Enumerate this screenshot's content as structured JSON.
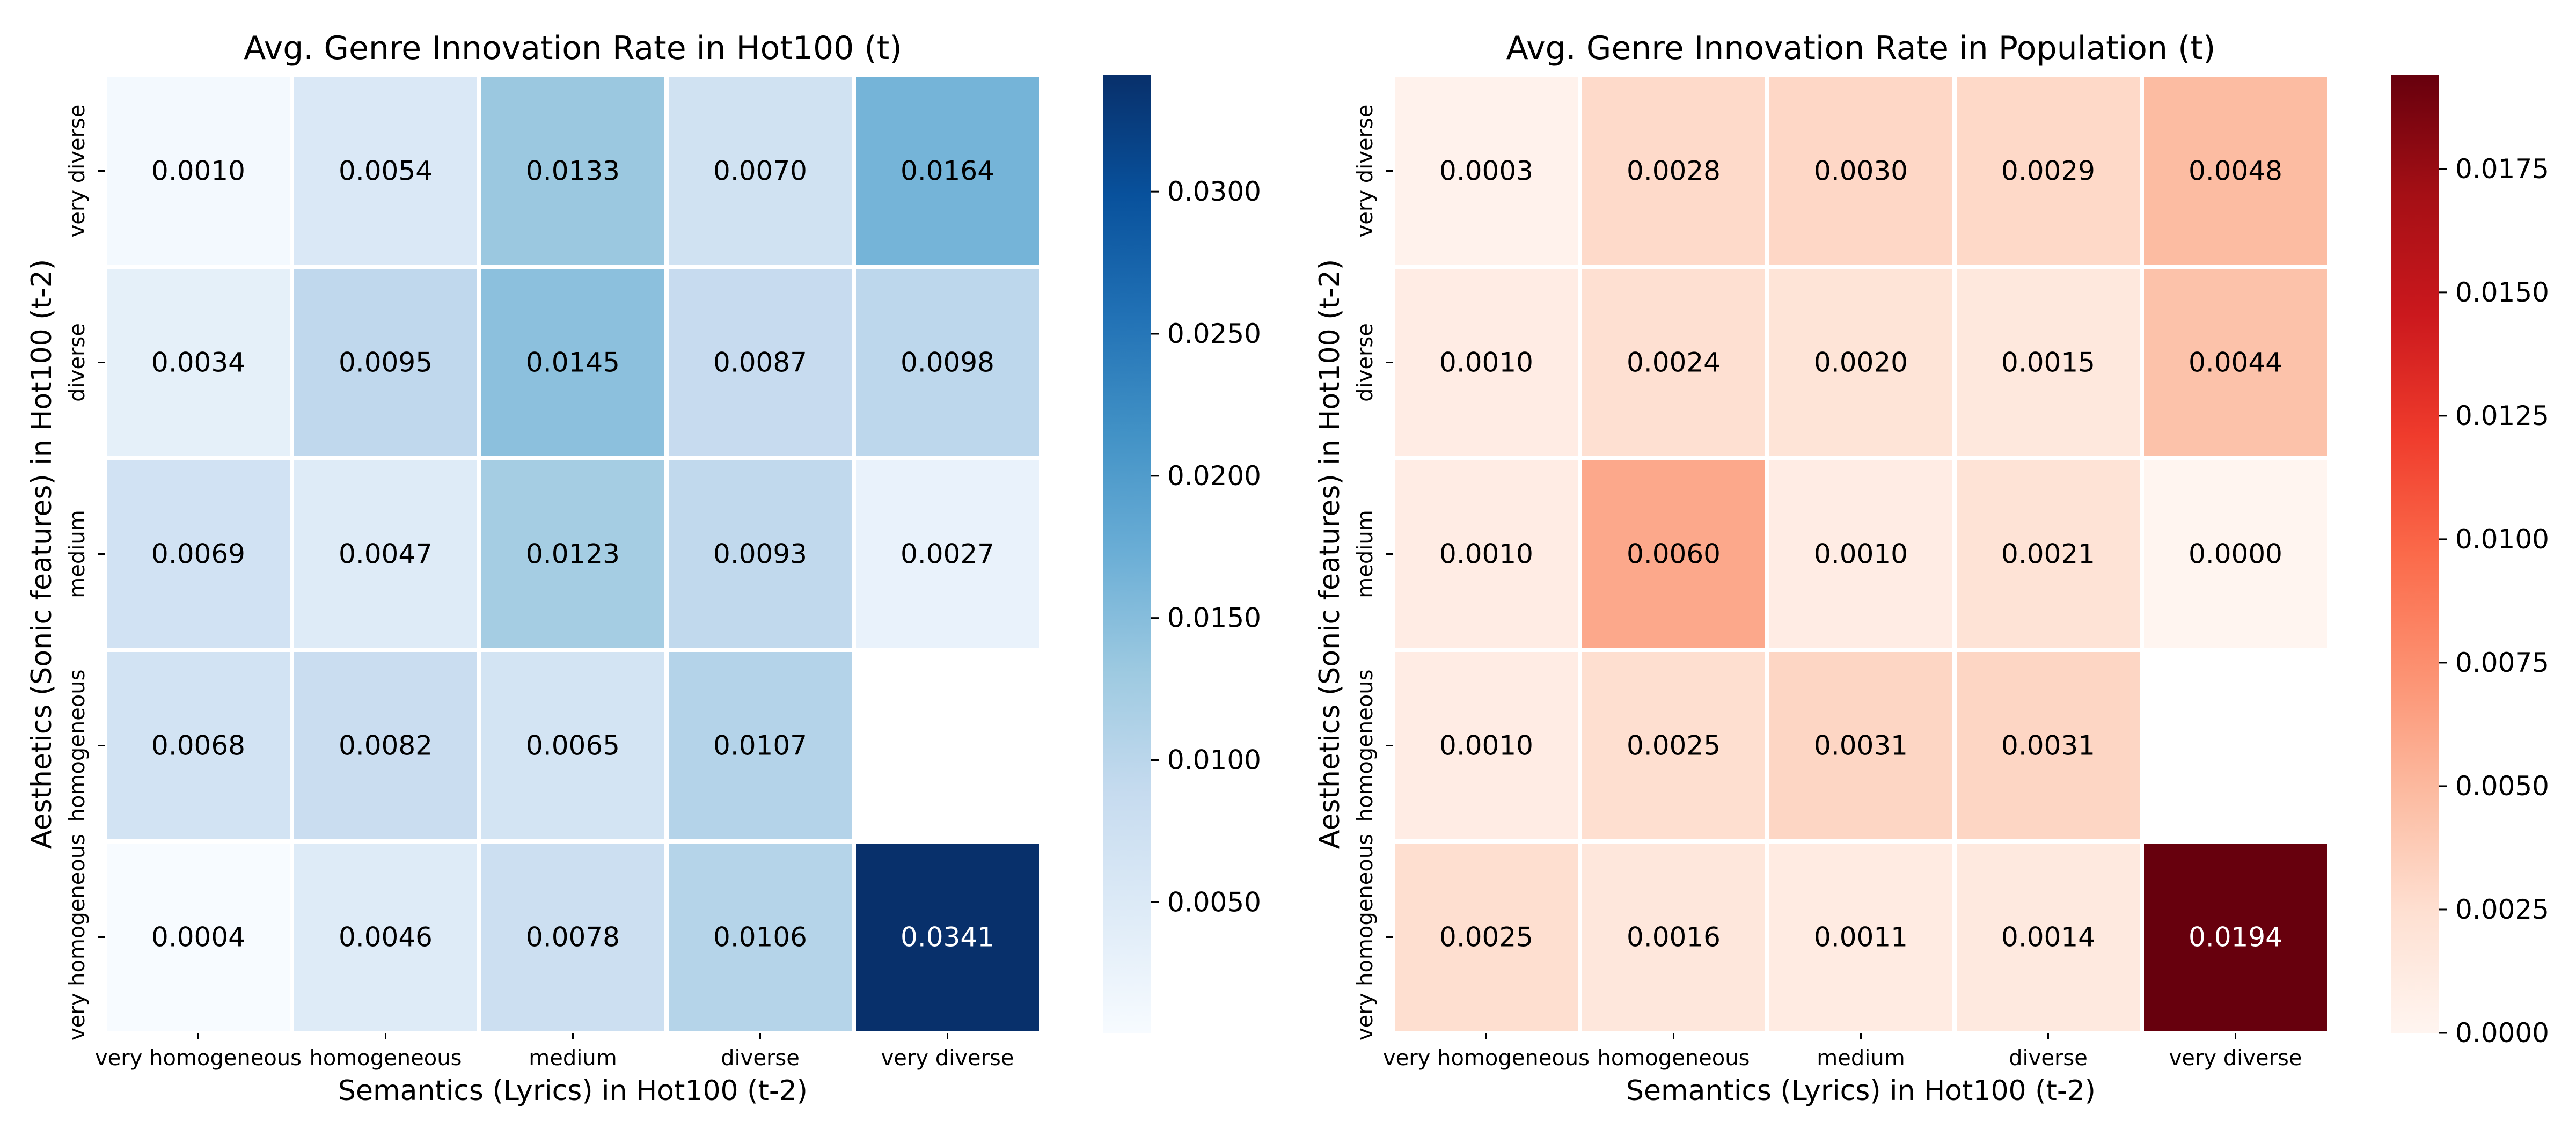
{
  "chart_data": [
    {
      "type": "heatmap",
      "title": "Avg. Genre Innovation Rate in Hot100 (t)",
      "xlabel": "Semantics (Lyrics) in Hot100 (t-2)",
      "ylabel": "Aesthetics (Sonic features) in Hot100 (t-2)",
      "x_categories": [
        "very homogeneous",
        "homogeneous",
        "medium",
        "diverse",
        "very diverse"
      ],
      "y_categories": [
        "very diverse",
        "diverse",
        "medium",
        "homogeneous",
        "very homogeneous"
      ],
      "values": [
        [
          0.001,
          0.0054,
          0.0133,
          0.007,
          0.0164
        ],
        [
          0.0034,
          0.0095,
          0.0145,
          0.0087,
          0.0098
        ],
        [
          0.0069,
          0.0047,
          0.0123,
          0.0093,
          0.0027
        ],
        [
          0.0068,
          0.0082,
          0.0065,
          0.0107,
          null
        ],
        [
          0.0004,
          0.0046,
          0.0078,
          0.0106,
          0.0341
        ]
      ],
      "cell_labels": [
        [
          "0.0010",
          "0.0054",
          "0.0133",
          "0.0070",
          "0.0164"
        ],
        [
          "0.0034",
          "0.0095",
          "0.0145",
          "0.0087",
          "0.0098"
        ],
        [
          "0.0069",
          "0.0047",
          "0.0123",
          "0.0093",
          "0.0027"
        ],
        [
          "0.0068",
          "0.0082",
          "0.0065",
          "0.0107",
          ""
        ],
        [
          "0.0004",
          "0.0046",
          "0.0078",
          "0.0106",
          "0.0341"
        ]
      ],
      "colormap": "Blues",
      "colormap_stops": [
        "#f7fbff",
        "#deebf7",
        "#c6dbef",
        "#9ecae1",
        "#6baed6",
        "#4292c6",
        "#2171b5",
        "#08519c",
        "#08306b"
      ],
      "vmin": 0.0004,
      "vmax": 0.0341,
      "colorbar_ticks": [
        0.005,
        0.01,
        0.015,
        0.02,
        0.025,
        0.03
      ],
      "colorbar_tick_labels": [
        "0.0050",
        "0.0100",
        "0.0150",
        "0.0200",
        "0.0250",
        "0.0300"
      ]
    },
    {
      "type": "heatmap",
      "title": "Avg. Genre Innovation Rate in Population (t)",
      "xlabel": "Semantics (Lyrics) in Hot100 (t-2)",
      "ylabel": "Aesthetics (Sonic features) in Hot100 (t-2)",
      "x_categories": [
        "very homogeneous",
        "homogeneous",
        "medium",
        "diverse",
        "very diverse"
      ],
      "y_categories": [
        "very diverse",
        "diverse",
        "medium",
        "homogeneous",
        "very homogeneous"
      ],
      "values": [
        [
          0.0003,
          0.0028,
          0.003,
          0.0029,
          0.0048
        ],
        [
          0.001,
          0.0024,
          0.002,
          0.0015,
          0.0044
        ],
        [
          0.001,
          0.006,
          0.001,
          0.0021,
          0.0
        ],
        [
          0.001,
          0.0025,
          0.0031,
          0.0031,
          null
        ],
        [
          0.0025,
          0.0016,
          0.0011,
          0.0014,
          0.0194
        ]
      ],
      "cell_labels": [
        [
          "0.0003",
          "0.0028",
          "0.0030",
          "0.0029",
          "0.0048"
        ],
        [
          "0.0010",
          "0.0024",
          "0.0020",
          "0.0015",
          "0.0044"
        ],
        [
          "0.0010",
          "0.0060",
          "0.0010",
          "0.0021",
          "0.0000"
        ],
        [
          "0.0010",
          "0.0025",
          "0.0031",
          "0.0031",
          ""
        ],
        [
          "0.0025",
          "0.0016",
          "0.0011",
          "0.0014",
          "0.0194"
        ]
      ],
      "colormap": "Reds",
      "colormap_stops": [
        "#fff5f0",
        "#fee0d2",
        "#fcbba1",
        "#fc9272",
        "#fb6a4a",
        "#ef3b2c",
        "#cb181d",
        "#a50f15",
        "#67000d"
      ],
      "vmin": 0.0,
      "vmax": 0.0194,
      "colorbar_ticks": [
        0.0,
        0.0025,
        0.005,
        0.0075,
        0.01,
        0.0125,
        0.015,
        0.0175
      ],
      "colorbar_tick_labels": [
        "0.0000",
        "0.0025",
        "0.0050",
        "0.0075",
        "0.0100",
        "0.0125",
        "0.0150",
        "0.0175"
      ]
    }
  ]
}
